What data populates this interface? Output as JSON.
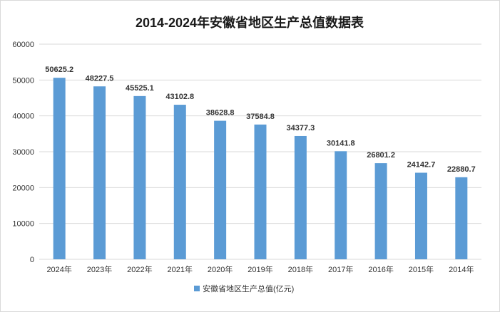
{
  "chart_data": {
    "type": "bar",
    "title": "2014-2024年安徽省地区生产总值数据表",
    "categories": [
      "2024年",
      "2023年",
      "2022年",
      "2021年",
      "2020年",
      "2019年",
      "2018年",
      "2017年",
      "2016年",
      "2015年",
      "2014年"
    ],
    "series": [
      {
        "name": "安徽省地区生产总值(亿元)",
        "values": [
          50625.2,
          48227.5,
          45525.1,
          43102.8,
          38628.8,
          37584.8,
          34377.3,
          30141.8,
          26801.2,
          24142.7,
          22880.7
        ],
        "color": "#5b9bd5"
      }
    ],
    "data_labels": [
      "50625.2",
      "48227.5",
      "45525.1",
      "43102.8",
      "38628.8",
      "37584.8",
      "34377.3",
      "30141.8",
      "26801.2",
      "24142.7",
      "22880.7"
    ],
    "yticks": [
      "0",
      "10000",
      "20000",
      "30000",
      "40000",
      "50000",
      "60000"
    ],
    "ylim": [
      0,
      60000
    ],
    "grid": true,
    "legend_position": "bottom"
  }
}
